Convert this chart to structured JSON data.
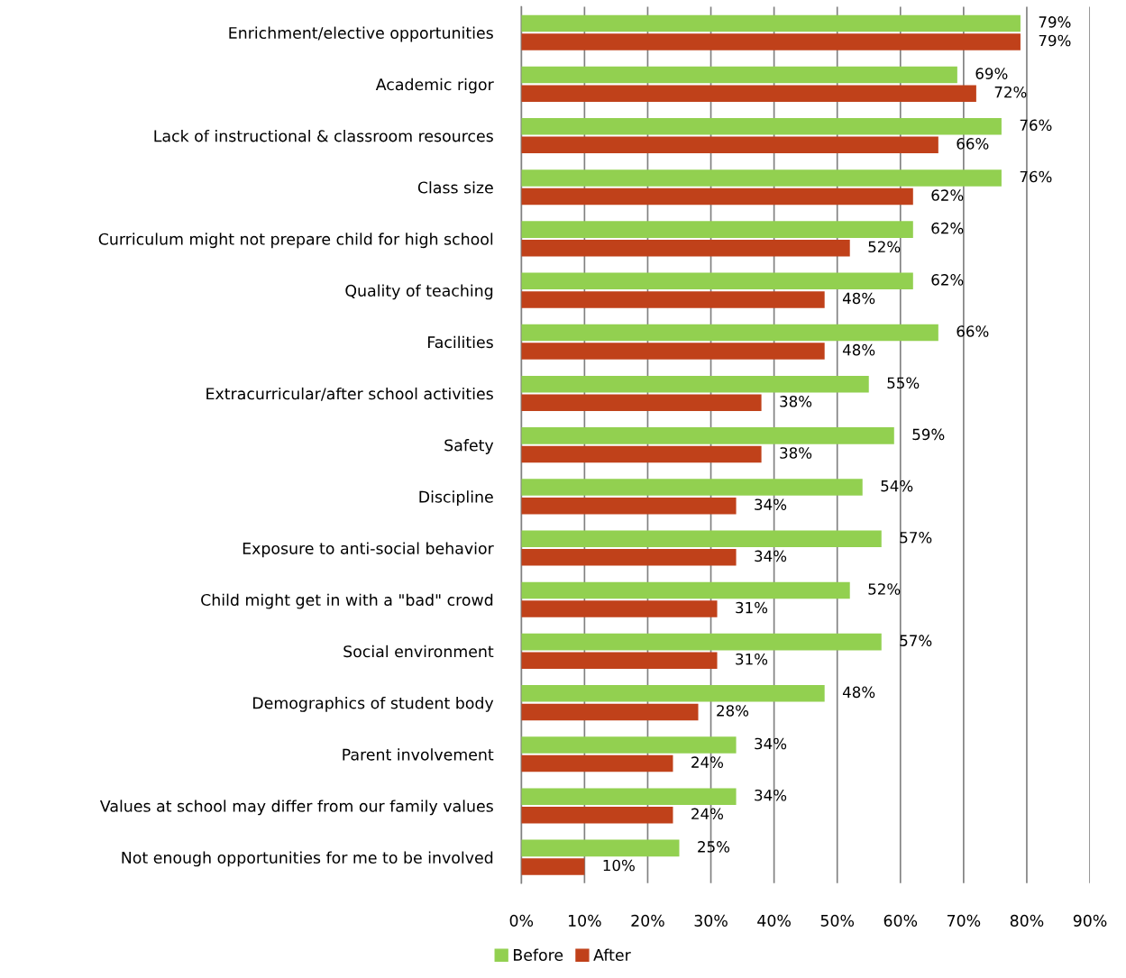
{
  "chart_data": {
    "type": "bar",
    "orientation": "horizontal",
    "categories": [
      "Enrichment/elective opportunities",
      "Academic rigor",
      "Lack of instructional & classroom resources",
      "Class size",
      "Curriculum might not prepare child for high school",
      "Quality of teaching",
      "Facilities",
      "Extracurricular/after school activities",
      "Safety",
      "Discipline",
      "Exposure to anti-social behavior",
      "Child might get in with a \"bad\" crowd",
      "Social environment",
      "Demographics of student body",
      "Parent involvement",
      "Values at school may differ from our family values",
      "Not enough opportunities for me to be involved"
    ],
    "series": [
      {
        "name": "Before",
        "color": "#92d050",
        "values": [
          79,
          69,
          76,
          76,
          62,
          62,
          66,
          55,
          59,
          54,
          57,
          52,
          57,
          48,
          34,
          34,
          25
        ],
        "value_labels": [
          "79%",
          "69%",
          "76%",
          "76%",
          "62%",
          "62%",
          "66%",
          "55%",
          "59%",
          "54%",
          "57%",
          "52%",
          "57%",
          "48%",
          "34%",
          "34%",
          "25%"
        ]
      },
      {
        "name": "After",
        "color": "#c0411a",
        "values": [
          79,
          72,
          66,
          62,
          52,
          48,
          48,
          38,
          38,
          34,
          34,
          31,
          31,
          28,
          24,
          24,
          10
        ],
        "value_labels": [
          "79%",
          "72%",
          "66%",
          "62%",
          "52%",
          "48%",
          "48%",
          "38%",
          "38%",
          "34%",
          "34%",
          "31%",
          "31%",
          "28%",
          "24%",
          "24%",
          "10%"
        ]
      }
    ],
    "xlim": [
      0,
      90
    ],
    "xticks": [
      {
        "value": 0,
        "label": "0%"
      },
      {
        "value": 10,
        "label": "10%"
      },
      {
        "value": 20,
        "label": "20%"
      },
      {
        "value": 30,
        "label": "30%"
      },
      {
        "value": 40,
        "label": "40%"
      },
      {
        "value": 50,
        "label": "50%"
      },
      {
        "value": 60,
        "label": "60%"
      },
      {
        "value": 70,
        "label": "70%"
      },
      {
        "value": 80,
        "label": "80%"
      },
      {
        "value": 90,
        "label": "90%"
      }
    ],
    "grid": "x",
    "legend": "bottom"
  }
}
